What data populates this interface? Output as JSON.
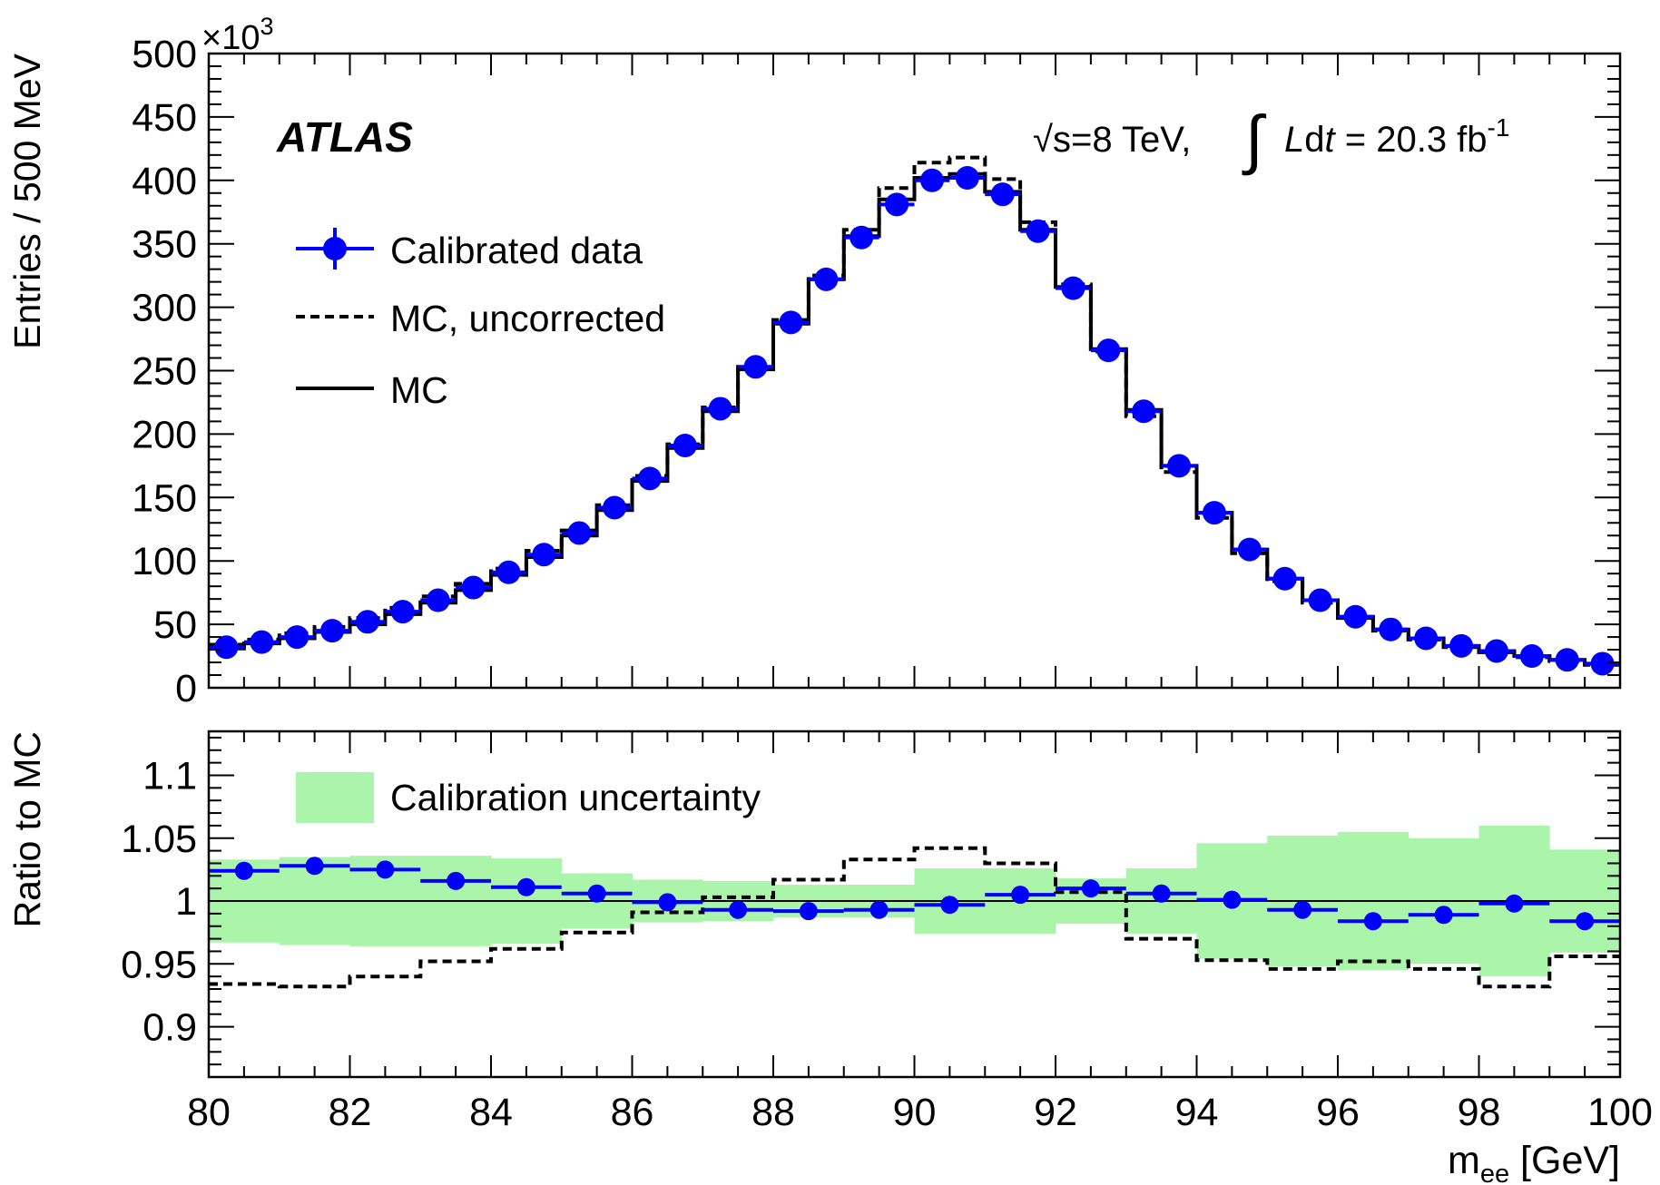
{
  "chart_data": [
    {
      "type": "line",
      "panel": "main",
      "title": "",
      "xlabel": "",
      "ylabel": "Entries / 500 MeV",
      "y_multiplier_label": "×10",
      "y_multiplier_exp": "3",
      "xlim": [
        80,
        100
      ],
      "ylim": [
        0,
        500
      ],
      "y_ticks": [
        0,
        50,
        100,
        150,
        200,
        250,
        300,
        350,
        400,
        450,
        500
      ],
      "experiment_label": "ATLAS",
      "energy_label": {
        "sqrt": "√s=8 TeV,",
        "integral": "∫",
        "lumi_L": "L",
        "lumi_d": "d",
        "lumi_t": "t",
        "lumi_rest": " = 20.3 fb",
        "lumi_exp": "-1"
      },
      "legend": [
        "Calibrated data",
        "MC, uncorrected",
        "MC"
      ],
      "bin_edges_start": 80,
      "bin_width": 0.5,
      "series": [
        {
          "name": "Calibrated data",
          "style": "points",
          "x": [
            80.25,
            80.75,
            81.25,
            81.75,
            82.25,
            82.75,
            83.25,
            83.75,
            84.25,
            84.75,
            85.25,
            85.75,
            86.25,
            86.75,
            87.25,
            87.75,
            88.25,
            88.75,
            89.25,
            89.75,
            90.25,
            90.75,
            91.25,
            91.75,
            92.25,
            92.75,
            93.25,
            93.75,
            94.25,
            94.75,
            95.25,
            95.75,
            96.25,
            96.75,
            97.25,
            97.75,
            98.25,
            98.75,
            99.25,
            99.75
          ],
          "values": [
            32,
            36,
            40,
            45,
            52,
            60,
            69,
            79,
            91,
            105,
            122,
            142,
            165,
            191,
            220,
            253,
            288,
            322,
            355,
            381,
            400,
            402,
            389,
            360,
            315,
            266,
            218,
            175,
            138,
            109,
            86,
            69,
            56,
            46,
            39,
            33,
            29,
            25,
            22,
            19
          ]
        },
        {
          "name": "MC",
          "style": "solid-step",
          "values": [
            31,
            35,
            39,
            44,
            50,
            58,
            67,
            77,
            89,
            103,
            120,
            140,
            163,
            189,
            218,
            251,
            287,
            322,
            356,
            385,
            402,
            405,
            391,
            361,
            316,
            267,
            219,
            175,
            138,
            109,
            86,
            69,
            56,
            46,
            39,
            33,
            29,
            25,
            22,
            19
          ]
        },
        {
          "name": "MC, uncorrected",
          "style": "dashed-step",
          "values": [
            34,
            38,
            43,
            48,
            55,
            63,
            72,
            82,
            94,
            108,
            124,
            144,
            167,
            192,
            221,
            253,
            290,
            325,
            361,
            394,
            414,
            418,
            401,
            367,
            318,
            265,
            214,
            170,
            134,
            106,
            84,
            67,
            55,
            45,
            38,
            32,
            28,
            24,
            21,
            18
          ]
        }
      ]
    },
    {
      "type": "line",
      "panel": "ratio",
      "xlabel_main": "m",
      "xlabel_sub": "ee",
      "xlabel_unit": " [GeV]",
      "ylabel": "Ratio to MC",
      "xlim": [
        80,
        100
      ],
      "ylim": [
        0.86,
        1.135
      ],
      "x_ticks": [
        80,
        82,
        84,
        86,
        88,
        90,
        92,
        94,
        96,
        98,
        100
      ],
      "y_tick_labels": [
        "0.9",
        "0.95",
        "1",
        "1.05",
        "1.1"
      ],
      "y_tick_values": [
        0.9,
        0.95,
        1.0,
        1.05,
        1.1
      ],
      "reference_line": 1.0,
      "legend": [
        "Calibration uncertainty"
      ],
      "bin_width": 1.0,
      "series": [
        {
          "name": "Calibrated data",
          "style": "points",
          "x": [
            80.5,
            81.5,
            82.5,
            83.5,
            84.5,
            85.5,
            86.5,
            87.5,
            88.5,
            89.5,
            90.5,
            91.5,
            92.5,
            93.5,
            94.5,
            95.5,
            96.5,
            97.5,
            98.5,
            99.5
          ],
          "values": [
            1.024,
            1.028,
            1.025,
            1.016,
            1.011,
            1.006,
            0.999,
            0.993,
            0.992,
            0.993,
            0.997,
            1.005,
            1.01,
            1.006,
            1.001,
            0.993,
            0.984,
            0.989,
            0.998,
            0.984
          ]
        },
        {
          "name": "MC, uncorrected",
          "style": "dashed-step",
          "values": [
            0.934,
            0.932,
            0.94,
            0.952,
            0.962,
            0.975,
            0.991,
            1.003,
            1.017,
            1.033,
            1.042,
            1.03,
            1.007,
            0.97,
            0.953,
            0.946,
            0.952,
            0.946,
            0.932,
            0.956
          ]
        },
        {
          "name": "Calibration uncertainty",
          "style": "band",
          "center": [
            1.0,
            1.0,
            1.0,
            1.0,
            1.0,
            1.0,
            1.0,
            1.0,
            1.0,
            1.0,
            1.0,
            1.0,
            1.0,
            1.0,
            1.0,
            1.0,
            1.0,
            1.0,
            1.0,
            1.0
          ],
          "halfwidth": [
            0.033,
            0.035,
            0.036,
            0.036,
            0.034,
            0.022,
            0.017,
            0.016,
            0.013,
            0.013,
            0.026,
            0.026,
            0.018,
            0.026,
            0.046,
            0.052,
            0.055,
            0.05,
            0.06,
            0.041
          ]
        }
      ]
    }
  ]
}
